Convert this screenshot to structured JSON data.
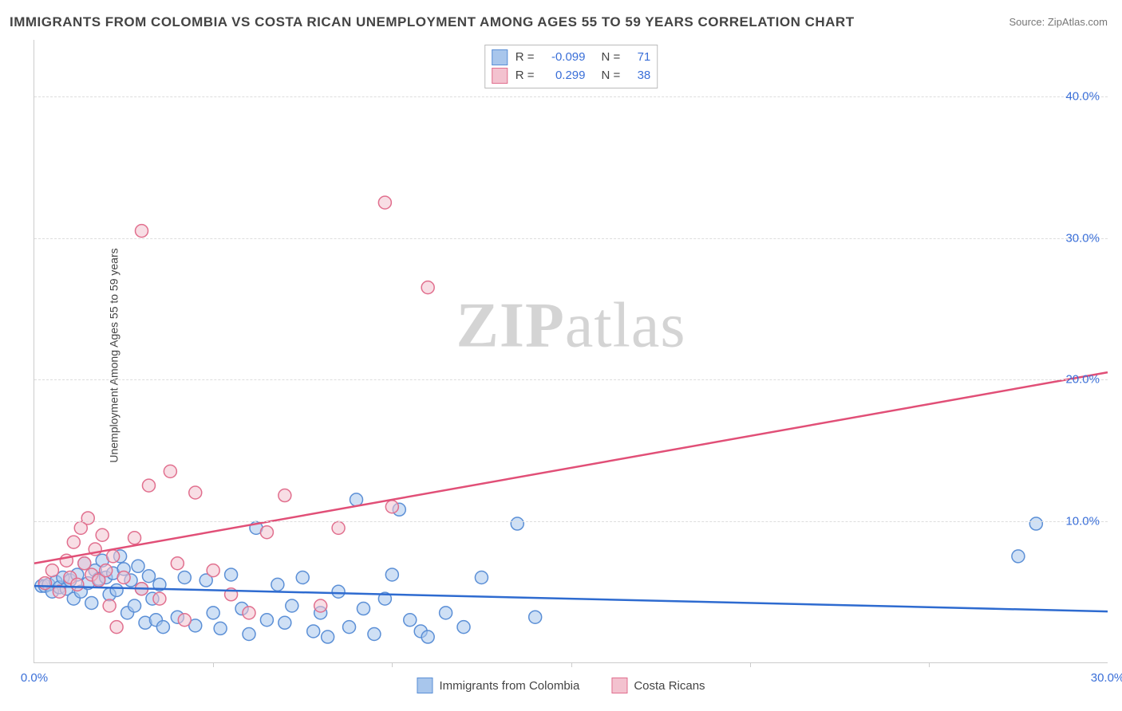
{
  "title": "IMMIGRANTS FROM COLOMBIA VS COSTA RICAN UNEMPLOYMENT AMONG AGES 55 TO 59 YEARS CORRELATION CHART",
  "source_label": "Source: ",
  "source_name": "ZipAtlas.com",
  "ylabel": "Unemployment Among Ages 55 to 59 years",
  "watermark_bold": "ZIP",
  "watermark_rest": "atlas",
  "chart": {
    "type": "scatter",
    "xlim": [
      0,
      30
    ],
    "ylim": [
      0,
      44
    ],
    "xticks": [
      0,
      30
    ],
    "xtick_labels": [
      "0.0%",
      "30.0%"
    ],
    "xtick_minor": [
      5,
      10,
      15,
      20,
      25
    ],
    "yticks": [
      10,
      20,
      30,
      40
    ],
    "ytick_labels": [
      "10.0%",
      "20.0%",
      "30.0%",
      "40.0%"
    ],
    "grid_color": "#dddddd",
    "background_color": "#ffffff",
    "axis_color": "#cccccc",
    "tick_label_color": "#3a6fd8",
    "marker_radius": 8,
    "marker_stroke_width": 1.5,
    "line_width": 2.5,
    "series": [
      {
        "name": "Immigrants from Colombia",
        "fill": "#a8c6ec",
        "stroke": "#5b8fd6",
        "fill_opacity": 0.55,
        "R": "-0.099",
        "N": "71",
        "trend": {
          "x1": 0,
          "y1": 5.4,
          "x2": 30,
          "y2": 3.6,
          "color": "#2e6bd0"
        },
        "points": [
          [
            0.2,
            5.4
          ],
          [
            0.3,
            5.4
          ],
          [
            0.4,
            5.5
          ],
          [
            0.5,
            5.0
          ],
          [
            0.6,
            5.7
          ],
          [
            0.7,
            5.3
          ],
          [
            0.8,
            6.0
          ],
          [
            0.9,
            5.2
          ],
          [
            1.0,
            5.8
          ],
          [
            1.1,
            4.5
          ],
          [
            1.2,
            6.2
          ],
          [
            1.3,
            5.0
          ],
          [
            1.4,
            7.0
          ],
          [
            1.5,
            5.6
          ],
          [
            1.6,
            4.2
          ],
          [
            1.7,
            6.5
          ],
          [
            1.8,
            5.9
          ],
          [
            1.9,
            7.2
          ],
          [
            2.0,
            6.0
          ],
          [
            2.1,
            4.8
          ],
          [
            2.2,
            6.3
          ],
          [
            2.3,
            5.1
          ],
          [
            2.4,
            7.5
          ],
          [
            2.5,
            6.6
          ],
          [
            2.6,
            3.5
          ],
          [
            2.7,
            5.8
          ],
          [
            2.8,
            4.0
          ],
          [
            2.9,
            6.8
          ],
          [
            3.0,
            5.2
          ],
          [
            3.1,
            2.8
          ],
          [
            3.2,
            6.1
          ],
          [
            3.3,
            4.5
          ],
          [
            3.4,
            3.0
          ],
          [
            3.5,
            5.5
          ],
          [
            3.6,
            2.5
          ],
          [
            4.0,
            3.2
          ],
          [
            4.2,
            6.0
          ],
          [
            4.5,
            2.6
          ],
          [
            4.8,
            5.8
          ],
          [
            5.0,
            3.5
          ],
          [
            5.2,
            2.4
          ],
          [
            5.5,
            6.2
          ],
          [
            5.8,
            3.8
          ],
          [
            6.0,
            2.0
          ],
          [
            6.2,
            9.5
          ],
          [
            6.5,
            3.0
          ],
          [
            6.8,
            5.5
          ],
          [
            7.0,
            2.8
          ],
          [
            7.2,
            4.0
          ],
          [
            7.5,
            6.0
          ],
          [
            7.8,
            2.2
          ],
          [
            8.0,
            3.5
          ],
          [
            8.2,
            1.8
          ],
          [
            8.5,
            5.0
          ],
          [
            8.8,
            2.5
          ],
          [
            9.0,
            11.5
          ],
          [
            9.2,
            3.8
          ],
          [
            9.5,
            2.0
          ],
          [
            9.8,
            4.5
          ],
          [
            10.0,
            6.2
          ],
          [
            10.2,
            10.8
          ],
          [
            10.5,
            3.0
          ],
          [
            10.8,
            2.2
          ],
          [
            11.0,
            1.8
          ],
          [
            11.5,
            3.5
          ],
          [
            12.0,
            2.5
          ],
          [
            12.5,
            6.0
          ],
          [
            13.5,
            9.8
          ],
          [
            14.0,
            3.2
          ],
          [
            27.5,
            7.5
          ],
          [
            28.0,
            9.8
          ]
        ]
      },
      {
        "name": "Costa Ricans",
        "fill": "#f3c2cf",
        "stroke": "#e16f8e",
        "fill_opacity": 0.55,
        "R": "0.299",
        "N": "38",
        "trend": {
          "x1": 0,
          "y1": 7.0,
          "x2": 30,
          "y2": 20.5,
          "color": "#e14f77"
        },
        "points": [
          [
            0.3,
            5.6
          ],
          [
            0.5,
            6.5
          ],
          [
            0.7,
            5.0
          ],
          [
            0.9,
            7.2
          ],
          [
            1.0,
            6.0
          ],
          [
            1.1,
            8.5
          ],
          [
            1.2,
            5.5
          ],
          [
            1.3,
            9.5
          ],
          [
            1.4,
            7.0
          ],
          [
            1.5,
            10.2
          ],
          [
            1.6,
            6.2
          ],
          [
            1.7,
            8.0
          ],
          [
            1.8,
            5.8
          ],
          [
            1.9,
            9.0
          ],
          [
            2.0,
            6.5
          ],
          [
            2.1,
            4.0
          ],
          [
            2.2,
            7.5
          ],
          [
            2.3,
            2.5
          ],
          [
            2.5,
            6.0
          ],
          [
            2.8,
            8.8
          ],
          [
            3.0,
            5.2
          ],
          [
            3.2,
            12.5
          ],
          [
            3.5,
            4.5
          ],
          [
            3.8,
            13.5
          ],
          [
            4.0,
            7.0
          ],
          [
            4.2,
            3.0
          ],
          [
            4.5,
            12.0
          ],
          [
            5.0,
            6.5
          ],
          [
            5.5,
            4.8
          ],
          [
            6.0,
            3.5
          ],
          [
            6.5,
            9.2
          ],
          [
            7.0,
            11.8
          ],
          [
            8.0,
            4.0
          ],
          [
            8.5,
            9.5
          ],
          [
            10.0,
            11.0
          ],
          [
            3.0,
            30.5
          ],
          [
            9.8,
            32.5
          ],
          [
            11.0,
            26.5
          ]
        ]
      }
    ]
  },
  "legend_top": {
    "R_label": "R =",
    "N_label": "N ="
  },
  "legend_bottom_labels": [
    "Immigrants from Colombia",
    "Costa Ricans"
  ]
}
